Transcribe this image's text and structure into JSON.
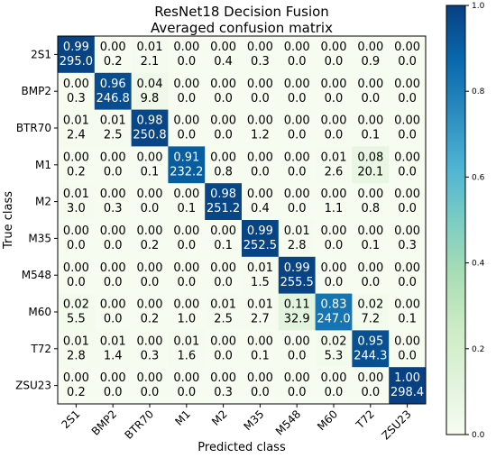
{
  "chart_data": {
    "type": "heatmap",
    "title": "ResNet18 Decision Fusion",
    "subtitle": "Averaged confusion matrix",
    "xlabel": "Predicted class",
    "ylabel": "True class",
    "classes": [
      "2S1",
      "BMP2",
      "BTR70",
      "M1",
      "M2",
      "M35",
      "M548",
      "M60",
      "T72",
      "ZSU23"
    ],
    "normalized": [
      [
        "0.99",
        "0.00",
        "0.01",
        "0.00",
        "0.00",
        "0.00",
        "0.00",
        "0.00",
        "0.00",
        "0.00"
      ],
      [
        "0.00",
        "0.96",
        "0.04",
        "0.00",
        "0.00",
        "0.00",
        "0.00",
        "0.00",
        "0.00",
        "0.00"
      ],
      [
        "0.01",
        "0.01",
        "0.98",
        "0.00",
        "0.00",
        "0.00",
        "0.00",
        "0.00",
        "0.00",
        "0.00"
      ],
      [
        "0.00",
        "0.00",
        "0.00",
        "0.91",
        "0.00",
        "0.00",
        "0.00",
        "0.01",
        "0.08",
        "0.00"
      ],
      [
        "0.01",
        "0.00",
        "0.00",
        "0.00",
        "0.98",
        "0.00",
        "0.00",
        "0.00",
        "0.00",
        "0.00"
      ],
      [
        "0.00",
        "0.00",
        "0.00",
        "0.00",
        "0.00",
        "0.99",
        "0.01",
        "0.00",
        "0.00",
        "0.00"
      ],
      [
        "0.00",
        "0.00",
        "0.00",
        "0.00",
        "0.00",
        "0.01",
        "0.99",
        "0.00",
        "0.00",
        "0.00"
      ],
      [
        "0.02",
        "0.00",
        "0.00",
        "0.00",
        "0.01",
        "0.01",
        "0.11",
        "0.83",
        "0.02",
        "0.00"
      ],
      [
        "0.01",
        "0.01",
        "0.00",
        "0.01",
        "0.00",
        "0.00",
        "0.00",
        "0.02",
        "0.95",
        "0.00"
      ],
      [
        "0.00",
        "0.00",
        "0.00",
        "0.00",
        "0.00",
        "0.00",
        "0.00",
        "0.00",
        "0.00",
        "1.00"
      ]
    ],
    "counts": [
      [
        "295.0",
        "0.2",
        "2.1",
        "0.0",
        "0.4",
        "0.3",
        "0.0",
        "0.0",
        "0.9",
        "0.0"
      ],
      [
        "0.3",
        "246.8",
        "9.8",
        "0.0",
        "0.0",
        "0.0",
        "0.0",
        "0.0",
        "0.0",
        "0.0"
      ],
      [
        "2.4",
        "2.5",
        "250.8",
        "0.0",
        "0.0",
        "1.2",
        "0.0",
        "0.0",
        "0.1",
        "0.0"
      ],
      [
        "0.2",
        "0.0",
        "0.1",
        "232.2",
        "0.8",
        "0.0",
        "0.0",
        "2.6",
        "20.1",
        "0.0"
      ],
      [
        "3.0",
        "0.3",
        "0.0",
        "0.1",
        "251.2",
        "0.4",
        "0.0",
        "1.1",
        "0.8",
        "0.0"
      ],
      [
        "0.0",
        "0.0",
        "0.2",
        "0.0",
        "0.1",
        "252.5",
        "2.8",
        "0.0",
        "0.1",
        "0.3"
      ],
      [
        "0.0",
        "0.0",
        "0.0",
        "0.0",
        "0.0",
        "1.5",
        "255.5",
        "0.0",
        "0.0",
        "0.0"
      ],
      [
        "5.5",
        "0.0",
        "0.2",
        "1.0",
        "2.5",
        "2.7",
        "32.9",
        "247.0",
        "7.2",
        "0.1"
      ],
      [
        "2.8",
        "1.4",
        "0.3",
        "1.6",
        "0.0",
        "0.1",
        "0.0",
        "5.3",
        "244.3",
        "0.0"
      ],
      [
        "0.2",
        "0.0",
        "0.0",
        "0.0",
        "0.3",
        "0.0",
        "0.0",
        "0.0",
        "0.0",
        "298.4"
      ]
    ],
    "colorbar": {
      "range": [
        0.0,
        1.0
      ],
      "ticks": [
        "0.0",
        "0.2",
        "0.4",
        "0.6",
        "0.8",
        "1.0"
      ],
      "colormap": "GnBu",
      "colors": [
        "#f7fcf0",
        "#e0f3db",
        "#ccebc5",
        "#a8ddb5",
        "#7bccc4",
        "#4eb3d3",
        "#2b8cbe",
        "#0868ac",
        "#084081"
      ]
    }
  }
}
